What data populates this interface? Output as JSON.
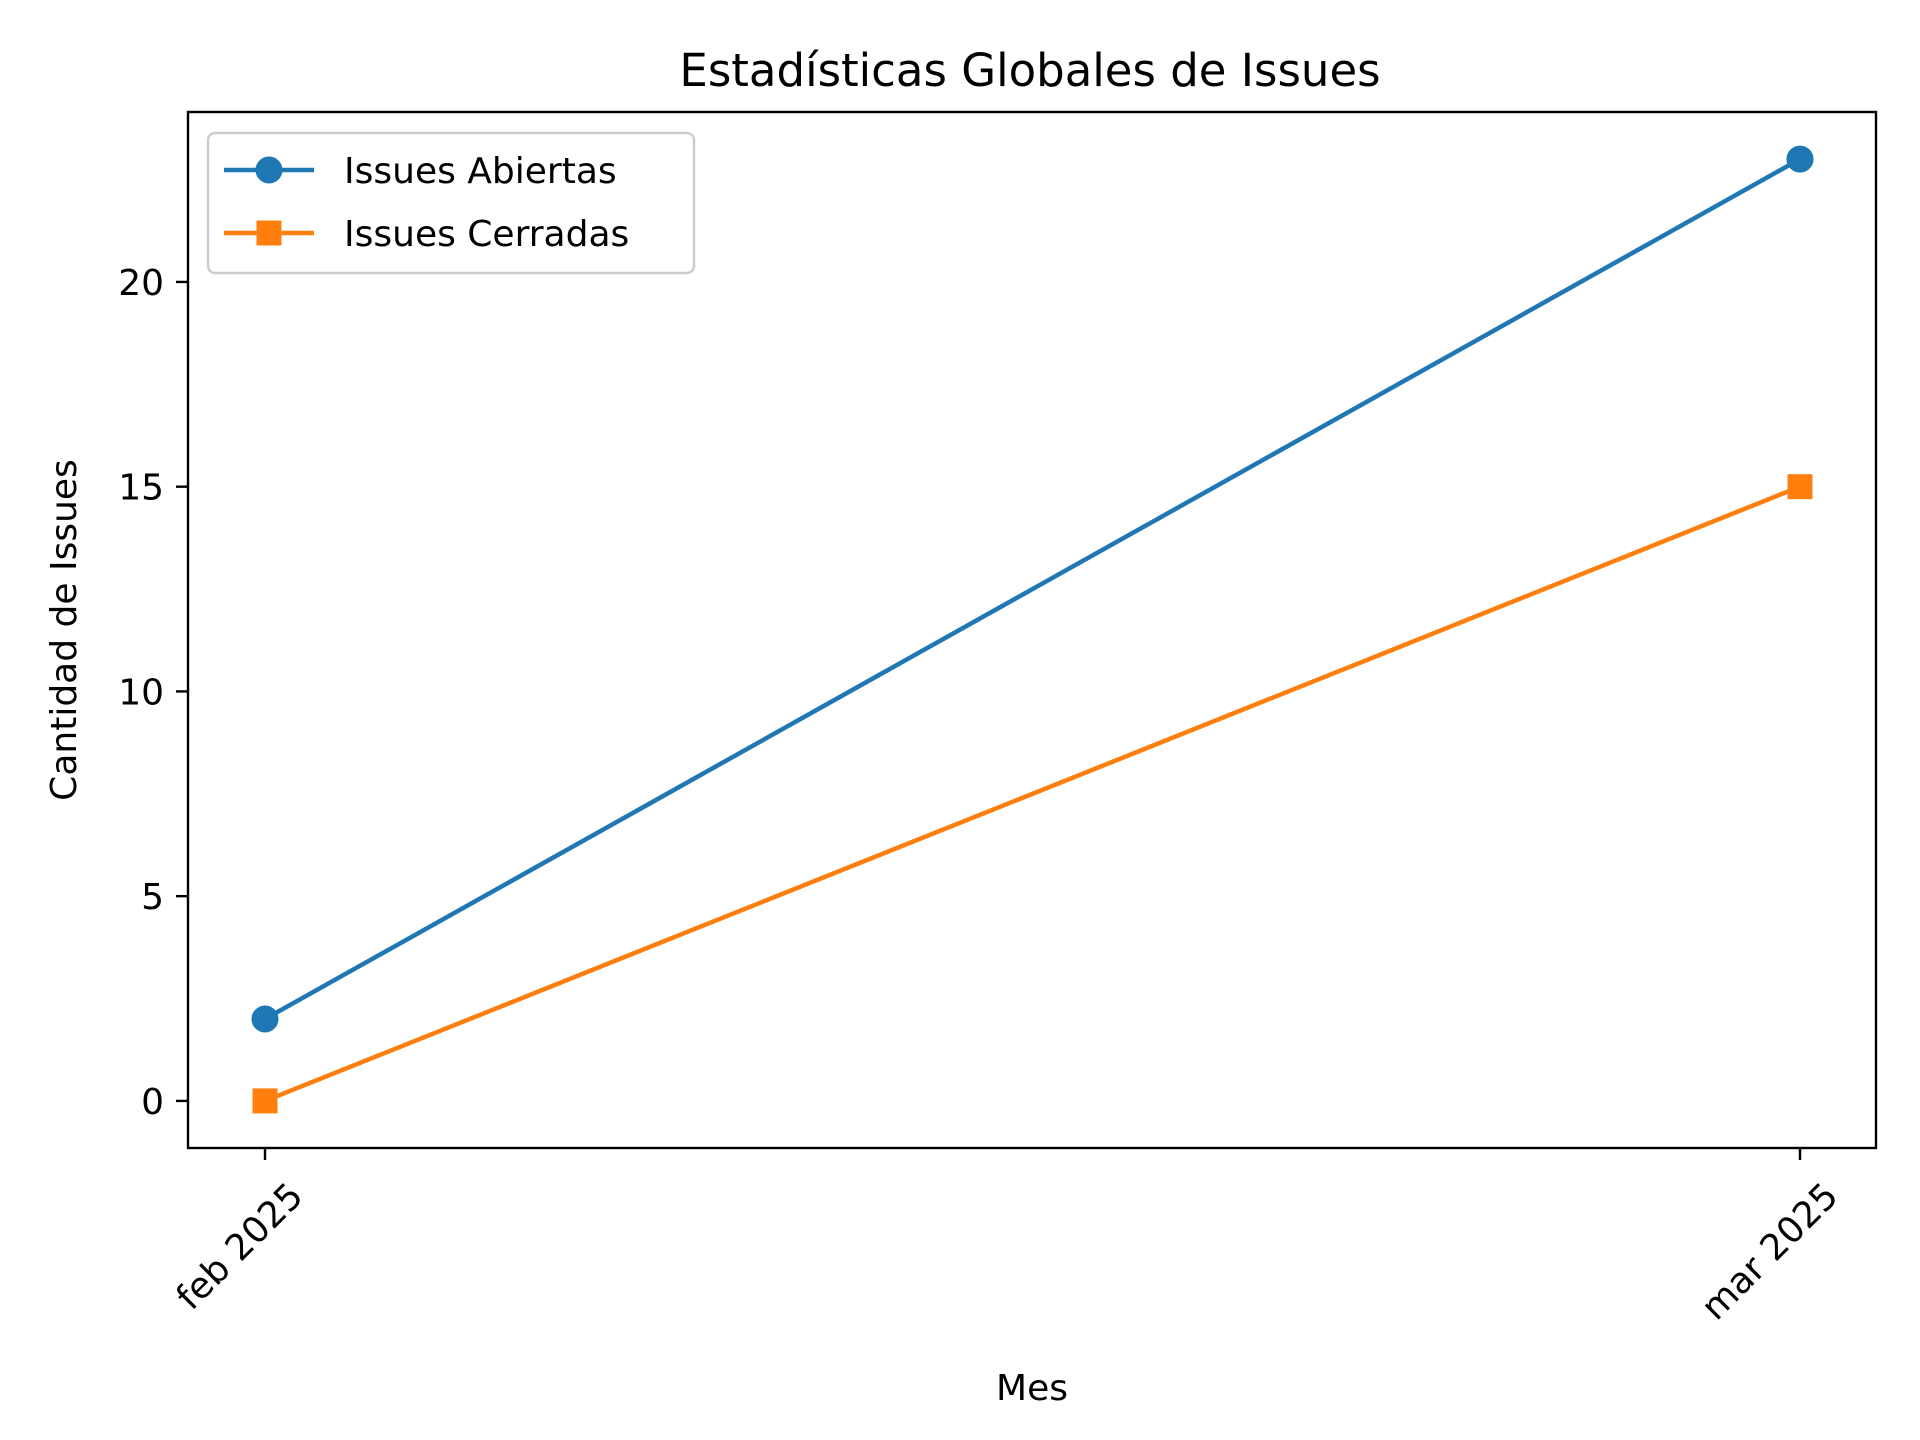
{
  "chart_data": {
    "type": "line",
    "title": "Estadísticas Globales de Issues",
    "xlabel": "Mes",
    "ylabel": "Cantidad de Issues",
    "categories": [
      "feb 2025",
      "mar 2025"
    ],
    "ylim": [
      -1.15,
      24.15
    ],
    "yticks": [
      0,
      5,
      10,
      15,
      20
    ],
    "grid": false,
    "legend_position": "top-left",
    "series": [
      {
        "name": "Issues Abiertas",
        "values": [
          2,
          23
        ],
        "color": "#1f77b4",
        "marker": "circle"
      },
      {
        "name": "Issues Cerradas",
        "values": [
          0,
          15
        ],
        "color": "#ff7f0e",
        "marker": "square"
      }
    ]
  }
}
